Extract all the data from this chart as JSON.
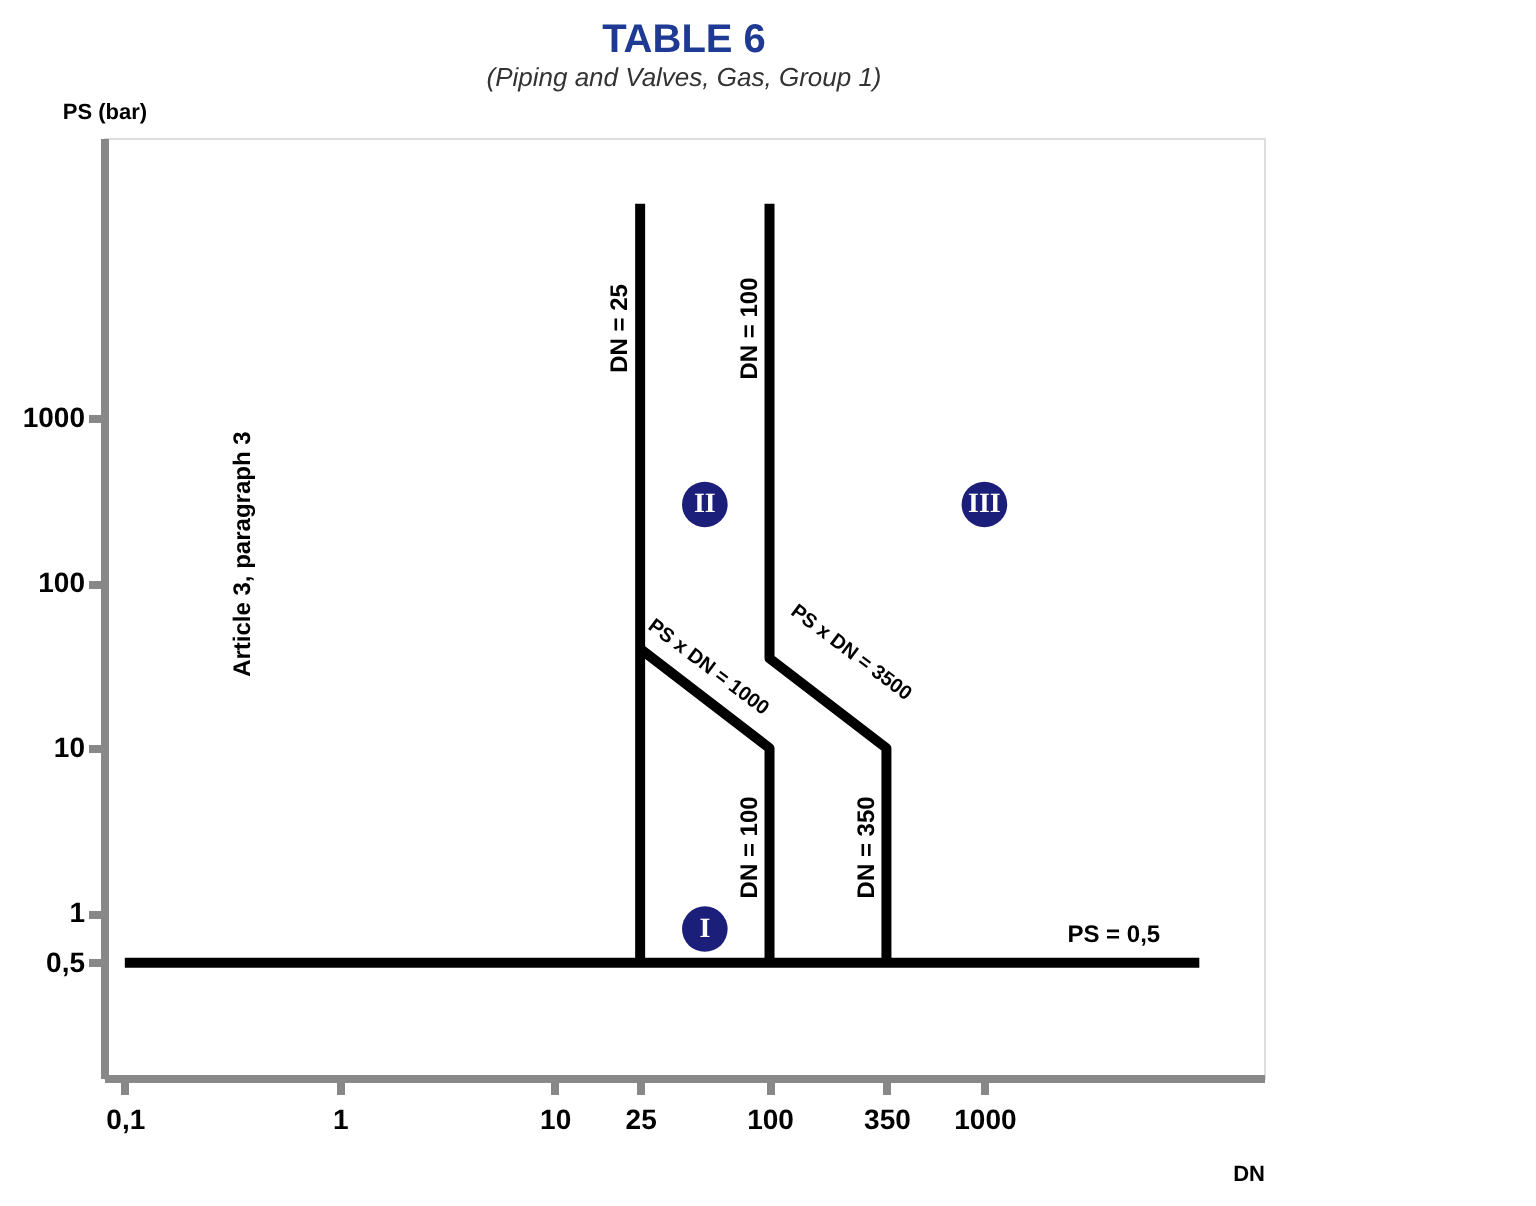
{
  "chart_data": {
    "type": "line",
    "title": "TABLE 6",
    "subtitle": "(Piping and Valves, Gas, Group 1)",
    "xlabel": "DN",
    "ylabel": "PS (bar)",
    "log": "xy",
    "xlim": [
      0.08,
      20000
    ],
    "ylim": [
      0.1,
      50000
    ],
    "xticks": [
      {
        "value": 0.1,
        "label": "0,1"
      },
      1,
      10,
      25,
      100,
      350,
      1000
    ],
    "yticks": [
      {
        "value": 0.5,
        "label": "0,5"
      },
      1,
      10,
      100,
      1000
    ],
    "grid": false,
    "marker": "none",
    "line_style": "solid",
    "series": [
      {
        "color": "#000000",
        "x": [
          0.1,
          10000
        ],
        "values": [
          0.5,
          0.5
        ]
      },
      {
        "color": "#000000",
        "x": [
          25,
          25
        ],
        "values": [
          0.5,
          20000
        ]
      },
      {
        "color": "#000000",
        "x": [
          25,
          100,
          100
        ],
        "values": [
          40,
          10,
          0.5
        ]
      },
      {
        "color": "#000000",
        "x": [
          100,
          100,
          350,
          350
        ],
        "values": [
          20000,
          35,
          10,
          0.5
        ]
      }
    ],
    "annotations": [
      "DN = 25",
      "DN = 100",
      "PS x DN = 1000",
      "PS x DN = 3500",
      "DN = 100",
      "DN = 350",
      "PS = 0,5",
      "Article 3, paragraph 3",
      "I",
      "II",
      "III"
    ]
  }
}
